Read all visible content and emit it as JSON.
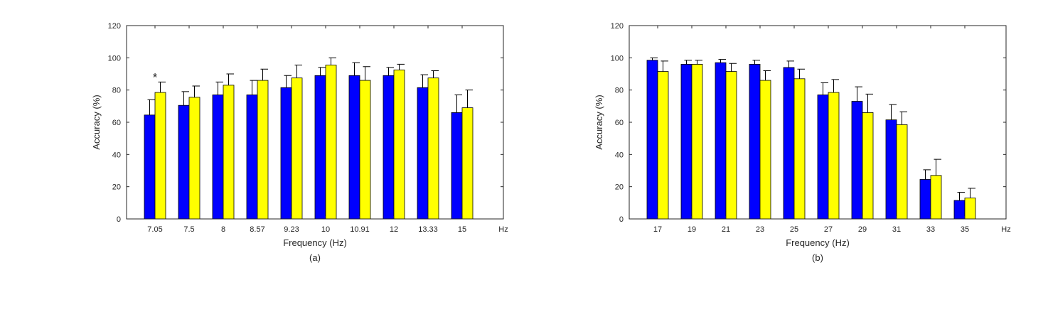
{
  "colors": {
    "series_a": "#0000ff",
    "series_b": "#ffff00"
  },
  "chart_data": [
    {
      "type": "bar",
      "categories": [
        "7.05",
        "7.5",
        "8",
        "8.57",
        "9.23",
        "10",
        "10.91",
        "12",
        "13.33",
        "15"
      ],
      "x_unit_label": "Hz",
      "xlabel": "Frequency (Hz)",
      "ylabel": "Accuracy (%)",
      "caption": "(a)",
      "ylim": [
        0,
        120
      ],
      "yticks": [
        0,
        20,
        40,
        60,
        80,
        100,
        120
      ],
      "grid": false,
      "series": [
        {
          "color": "#0000ff",
          "values": [
            64.5,
            70.5,
            77,
            77,
            81.5,
            89,
            89,
            89,
            81.5,
            66
          ],
          "errors": [
            9.5,
            8.5,
            8,
            9,
            7.5,
            5,
            8,
            5,
            8,
            11
          ]
        },
        {
          "color": "#ffff00",
          "values": [
            78.5,
            75.5,
            83,
            86,
            87.5,
            95.5,
            86,
            92.5,
            87.5,
            69
          ],
          "errors": [
            6.5,
            7,
            7,
            7,
            8,
            4.5,
            8.5,
            3.5,
            4.5,
            11
          ]
        }
      ],
      "annotations": [
        {
          "text": "*",
          "category": "7.05"
        }
      ]
    },
    {
      "type": "bar",
      "categories": [
        "17",
        "19",
        "21",
        "23",
        "25",
        "27",
        "29",
        "31",
        "33",
        "35"
      ],
      "x_unit_label": "Hz",
      "xlabel": "Frequency (Hz)",
      "ylabel": "Accuracy (%)",
      "caption": "(b)",
      "ylim": [
        0,
        120
      ],
      "yticks": [
        0,
        20,
        40,
        60,
        80,
        100,
        120
      ],
      "grid": false,
      "series": [
        {
          "color": "#0000ff",
          "values": [
            98.5,
            96,
            97,
            96,
            94,
            77,
            73,
            61.5,
            24.5,
            11.5
          ],
          "errors": [
            1.5,
            2.5,
            2,
            2.5,
            4,
            7.5,
            9,
            9.5,
            6,
            5
          ]
        },
        {
          "color": "#ffff00",
          "values": [
            91.5,
            96,
            91.5,
            86,
            87,
            78.5,
            66,
            58.5,
            27,
            13
          ],
          "errors": [
            6.5,
            2.5,
            5,
            6,
            6,
            8,
            11.5,
            8,
            10,
            6
          ]
        }
      ],
      "annotations": []
    }
  ]
}
